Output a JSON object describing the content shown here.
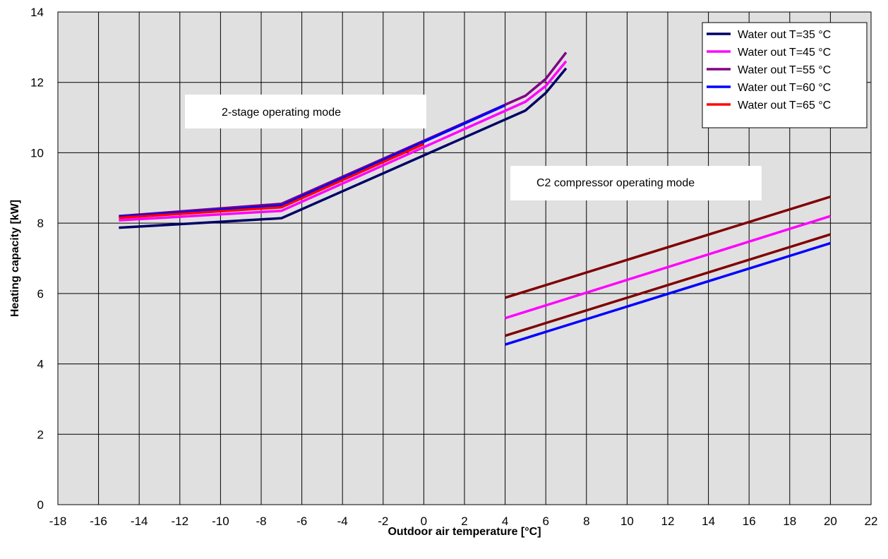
{
  "chart_data": {
    "type": "line",
    "xlabel": "Outdoor air temperature [°C]",
    "ylabel": "Heating capacity [kW]",
    "xlim": [
      -18,
      22
    ],
    "ylim": [
      0,
      14
    ],
    "xticks": [
      -18,
      -16,
      -14,
      -12,
      -10,
      -8,
      -6,
      -4,
      -2,
      0,
      2,
      4,
      6,
      8,
      10,
      12,
      14,
      16,
      18,
      20,
      22
    ],
    "yticks": [
      0,
      2,
      4,
      6,
      8,
      10,
      12,
      14
    ],
    "grid": true,
    "legend_position": "top-right",
    "annotations": [
      {
        "text": "2-stage operating mode"
      },
      {
        "text": "C2 compressor operating mode"
      }
    ],
    "series": [
      {
        "name": "Water out T=35 °C",
        "color": "#000066",
        "x": [
          -15,
          -7,
          5,
          6,
          7
        ],
        "y": [
          7.87,
          8.14,
          11.2,
          11.7,
          12.4
        ]
      },
      {
        "name": "Water out T=45 °C",
        "color": "#ff00ff",
        "x": [
          -15,
          -7,
          5,
          6,
          7
        ],
        "y": [
          8.08,
          8.35,
          11.45,
          11.9,
          12.6
        ]
      },
      {
        "name": "Water out T=55 °C",
        "color": "#800080",
        "x": [
          -15,
          -7,
          5,
          6,
          7
        ],
        "y": [
          8.2,
          8.55,
          11.62,
          12.1,
          12.85
        ]
      },
      {
        "name": "Water out T=60 °C",
        "color": "#0000ff",
        "x": [
          -15,
          -7,
          4
        ],
        "y": [
          8.18,
          8.5,
          11.35
        ]
      },
      {
        "name": "Water out T=65 °C",
        "color": "#ff0000",
        "x": [
          -15,
          -7,
          0
        ],
        "y": [
          8.15,
          8.45,
          10.25
        ]
      },
      {
        "color": "#800000",
        "x": [
          4,
          20
        ],
        "y": [
          5.88,
          8.75
        ]
      },
      {
        "color": "#ff00ff",
        "x": [
          4,
          20
        ],
        "y": [
          5.3,
          8.2
        ]
      },
      {
        "color": "#800000",
        "x": [
          4,
          20
        ],
        "y": [
          4.8,
          7.68
        ]
      },
      {
        "color": "#0000ff",
        "x": [
          4,
          20
        ],
        "y": [
          4.55,
          7.43
        ]
      }
    ]
  }
}
